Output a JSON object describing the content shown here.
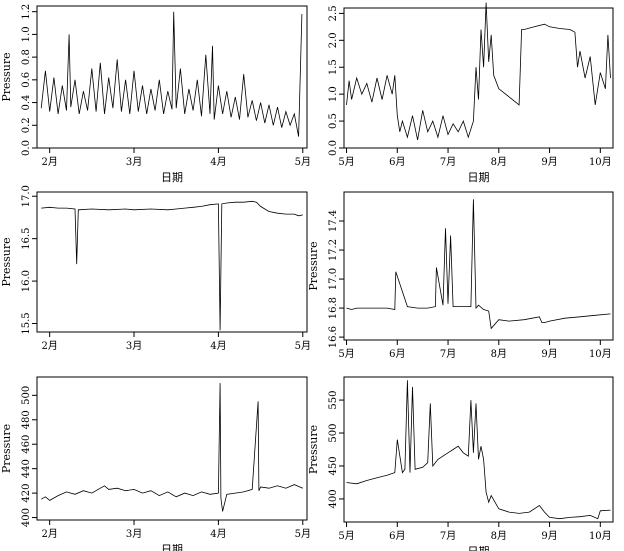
{
  "chart_data": [
    {
      "type": "line",
      "xlabel": "日期",
      "ylabel": "Pressure",
      "ylim": [
        0.0,
        1.25
      ],
      "yticks": [
        0.0,
        0.2,
        0.4,
        0.6,
        0.8,
        1.0,
        1.2
      ],
      "ytick_labels": [
        "0.0",
        "0.2",
        "0.4",
        "0.6",
        "0.8",
        "1.0",
        "1.2"
      ],
      "xlim": [
        1.85,
        5.05
      ],
      "xticks": [
        2,
        3,
        4,
        5
      ],
      "xtick_labels": [
        "2月",
        "3月",
        "4月",
        "5月"
      ],
      "series": [
        {
          "x": [
            1.9,
            1.95,
            2.0,
            2.05,
            2.1,
            2.15,
            2.2,
            2.23,
            2.25,
            2.3,
            2.35,
            2.4,
            2.45,
            2.5,
            2.55,
            2.6,
            2.65,
            2.7,
            2.75,
            2.8,
            2.85,
            2.9,
            2.95,
            3.0,
            3.05,
            3.1,
            3.15,
            3.2,
            3.25,
            3.3,
            3.35,
            3.4,
            3.45,
            3.47,
            3.5,
            3.55,
            3.6,
            3.65,
            3.7,
            3.75,
            3.8,
            3.85,
            3.9,
            3.93,
            3.95,
            4.0,
            4.05,
            4.1,
            4.15,
            4.2,
            4.25,
            4.3,
            4.35,
            4.4,
            4.45,
            4.5,
            4.55,
            4.6,
            4.65,
            4.7,
            4.75,
            4.8,
            4.85,
            4.9,
            4.95,
            4.99
          ],
          "y": [
            0.35,
            0.68,
            0.32,
            0.62,
            0.3,
            0.55,
            0.33,
            1.0,
            0.36,
            0.6,
            0.3,
            0.5,
            0.33,
            0.7,
            0.32,
            0.75,
            0.3,
            0.62,
            0.35,
            0.78,
            0.32,
            0.6,
            0.3,
            0.68,
            0.32,
            0.55,
            0.3,
            0.52,
            0.33,
            0.6,
            0.3,
            0.5,
            0.34,
            1.2,
            0.35,
            0.7,
            0.3,
            0.52,
            0.33,
            0.6,
            0.28,
            0.82,
            0.3,
            0.9,
            0.25,
            0.55,
            0.3,
            0.5,
            0.27,
            0.45,
            0.25,
            0.65,
            0.27,
            0.42,
            0.24,
            0.4,
            0.22,
            0.38,
            0.2,
            0.36,
            0.18,
            0.32,
            0.2,
            0.3,
            0.1,
            1.18
          ]
        }
      ]
    },
    {
      "type": "line",
      "xlabel": "日期",
      "ylabel": "",
      "ylim": [
        0.0,
        2.6
      ],
      "yticks": [
        0.0,
        0.5,
        1.0,
        1.5,
        2.0,
        2.5
      ],
      "ytick_labels": [
        "0.0",
        "0.5",
        "1.0",
        "1.5",
        "2.0",
        "2.5"
      ],
      "xlim": [
        4.95,
        10.25
      ],
      "xticks": [
        5,
        6,
        7,
        8,
        9,
        10
      ],
      "xtick_labels": [
        "5月",
        "6月",
        "7月",
        "8月",
        "9月",
        "10月"
      ],
      "series": [
        {
          "x": [
            5.0,
            5.05,
            5.1,
            5.2,
            5.3,
            5.4,
            5.5,
            5.6,
            5.7,
            5.8,
            5.9,
            5.95,
            6.0,
            6.05,
            6.1,
            6.2,
            6.3,
            6.4,
            6.5,
            6.6,
            6.7,
            6.8,
            6.9,
            7.0,
            7.1,
            7.2,
            7.3,
            7.4,
            7.5,
            7.55,
            7.6,
            7.65,
            7.7,
            7.75,
            7.8,
            7.85,
            7.9,
            8.0,
            8.2,
            8.4,
            8.45,
            8.5,
            8.7,
            8.9,
            9.0,
            9.2,
            9.4,
            9.5,
            9.55,
            9.6,
            9.7,
            9.8,
            9.9,
            10.0,
            10.1,
            10.15,
            10.2
          ],
          "y": [
            0.8,
            1.25,
            0.9,
            1.3,
            1.0,
            1.2,
            0.85,
            1.3,
            0.9,
            1.35,
            1.0,
            1.35,
            0.6,
            0.3,
            0.5,
            0.2,
            0.6,
            0.15,
            0.7,
            0.3,
            0.5,
            0.2,
            0.6,
            0.25,
            0.45,
            0.3,
            0.5,
            0.2,
            0.5,
            1.5,
            0.9,
            2.2,
            1.5,
            2.7,
            1.6,
            2.1,
            1.35,
            1.1,
            0.95,
            0.8,
            2.2,
            2.2,
            2.25,
            2.3,
            2.25,
            2.22,
            2.2,
            2.15,
            1.5,
            1.8,
            1.3,
            1.7,
            0.8,
            1.4,
            1.1,
            2.1,
            1.3
          ]
        }
      ]
    },
    {
      "type": "line",
      "xlabel": "",
      "ylabel": "Pressure",
      "ylim": [
        15.4,
        17.05
      ],
      "yticks": [
        15.5,
        16.0,
        16.5,
        17.0
      ],
      "ytick_labels": [
        "15.5",
        "16.0",
        "16.5",
        "17.0"
      ],
      "xlim": [
        1.85,
        5.05
      ],
      "xticks": [
        2,
        3,
        4,
        5
      ],
      "xtick_labels": [
        "2月",
        "3月",
        "4月",
        "5月"
      ],
      "series": [
        {
          "x": [
            1.9,
            2.0,
            2.1,
            2.2,
            2.3,
            2.32,
            2.34,
            2.5,
            2.7,
            2.9,
            3.0,
            3.2,
            3.4,
            3.5,
            3.6,
            3.7,
            3.8,
            3.9,
            4.0,
            4.02,
            4.04,
            4.1,
            4.2,
            4.3,
            4.4,
            4.45,
            4.5,
            4.55,
            4.6,
            4.7,
            4.8,
            4.9,
            4.95,
            5.0
          ],
          "y": [
            16.86,
            16.87,
            16.86,
            16.86,
            16.85,
            16.2,
            16.84,
            16.85,
            16.84,
            16.85,
            16.84,
            16.85,
            16.84,
            16.85,
            16.86,
            16.87,
            16.88,
            16.9,
            16.91,
            15.42,
            16.91,
            16.92,
            16.93,
            16.93,
            16.94,
            16.93,
            16.88,
            16.85,
            16.82,
            16.8,
            16.79,
            16.79,
            16.77,
            16.78
          ]
        }
      ]
    },
    {
      "type": "line",
      "xlabel": "",
      "ylabel": "Pressure",
      "ylim": [
        16.58,
        17.6
      ],
      "yticks": [
        16.6,
        16.8,
        17.0,
        17.2,
        17.4
      ],
      "ytick_labels": [
        "16.6",
        "16.8",
        "17.0",
        "17.2",
        "17.4"
      ],
      "xlim": [
        4.95,
        10.25
      ],
      "xticks": [
        5,
        6,
        7,
        8,
        9,
        10
      ],
      "xtick_labels": [
        "5月",
        "6月",
        "7月",
        "8月",
        "9月",
        "10月"
      ],
      "series": [
        {
          "x": [
            5.0,
            5.1,
            5.2,
            5.5,
            5.8,
            5.95,
            5.97,
            6.2,
            6.4,
            6.6,
            6.75,
            6.77,
            6.9,
            6.95,
            7.0,
            7.05,
            7.1,
            7.3,
            7.45,
            7.5,
            7.55,
            7.6,
            7.7,
            7.8,
            7.85,
            8.0,
            8.2,
            8.5,
            8.8,
            8.85,
            8.9,
            9.0,
            9.3,
            9.6,
            9.9,
            10.2
          ],
          "y": [
            16.8,
            16.79,
            16.8,
            16.8,
            16.8,
            16.79,
            17.05,
            16.81,
            16.8,
            16.8,
            16.81,
            17.08,
            16.82,
            17.35,
            16.83,
            17.3,
            16.81,
            16.81,
            16.81,
            17.55,
            16.8,
            16.82,
            16.79,
            16.78,
            16.66,
            16.72,
            16.71,
            16.72,
            16.74,
            16.7,
            16.7,
            16.71,
            16.73,
            16.74,
            16.75,
            16.76
          ]
        }
      ]
    },
    {
      "type": "line",
      "xlabel": "日期",
      "ylabel": "Pressure",
      "ylim": [
        398,
        515
      ],
      "yticks": [
        400,
        420,
        440,
        460,
        480,
        500
      ],
      "ytick_labels": [
        "400",
        "420",
        "440",
        "460",
        "480",
        "500"
      ],
      "xlim": [
        1.85,
        5.05
      ],
      "xticks": [
        2,
        3,
        4,
        5
      ],
      "xtick_labels": [
        "2月",
        "3月",
        "4月",
        "5月"
      ],
      "series": [
        {
          "x": [
            1.9,
            1.95,
            2.0,
            2.1,
            2.2,
            2.3,
            2.4,
            2.5,
            2.6,
            2.65,
            2.7,
            2.8,
            2.9,
            3.0,
            3.1,
            3.2,
            3.3,
            3.4,
            3.5,
            3.6,
            3.7,
            3.8,
            3.9,
            4.0,
            4.02,
            4.03,
            4.05,
            4.1,
            4.2,
            4.3,
            4.4,
            4.47,
            4.48,
            4.5,
            4.6,
            4.7,
            4.8,
            4.9,
            5.0
          ],
          "y": [
            415,
            417,
            414,
            418,
            421,
            419,
            422,
            420,
            424,
            426,
            423,
            424,
            422,
            423,
            420,
            422,
            418,
            421,
            417,
            420,
            418,
            421,
            419,
            420,
            510,
            416,
            405,
            419,
            420,
            421,
            423,
            495,
            422,
            425,
            424,
            426,
            424,
            427,
            424
          ]
        }
      ]
    },
    {
      "type": "line",
      "xlabel": "日期",
      "ylabel": "Pressure",
      "ylim": [
        365,
        585
      ],
      "yticks": [
        400,
        450,
        500,
        550
      ],
      "ytick_labels": [
        "400",
        "450",
        "500",
        "550"
      ],
      "xlim": [
        4.95,
        10.25
      ],
      "xticks": [
        5,
        6,
        7,
        8,
        9,
        10
      ],
      "xtick_labels": [
        "5月",
        "6月",
        "7月",
        "8月",
        "9月",
        "10月"
      ],
      "series": [
        {
          "x": [
            5.0,
            5.2,
            5.4,
            5.6,
            5.8,
            5.95,
            6.0,
            6.1,
            6.15,
            6.2,
            6.25,
            6.3,
            6.35,
            6.5,
            6.6,
            6.65,
            6.7,
            6.8,
            6.9,
            7.0,
            7.1,
            7.2,
            7.3,
            7.4,
            7.45,
            7.5,
            7.55,
            7.6,
            7.65,
            7.7,
            7.75,
            7.8,
            7.85,
            8.0,
            8.2,
            8.4,
            8.6,
            8.8,
            8.9,
            9.0,
            9.2,
            9.4,
            9.6,
            9.8,
            9.95,
            10.0,
            10.2
          ],
          "y": [
            425,
            423,
            428,
            432,
            436,
            440,
            490,
            440,
            445,
            580,
            440,
            570,
            445,
            448,
            455,
            545,
            450,
            460,
            465,
            470,
            475,
            480,
            470,
            465,
            550,
            470,
            545,
            460,
            480,
            460,
            410,
            395,
            405,
            385,
            380,
            378,
            380,
            390,
            380,
            372,
            370,
            372,
            373,
            375,
            370,
            382,
            383
          ]
        }
      ]
    }
  ]
}
